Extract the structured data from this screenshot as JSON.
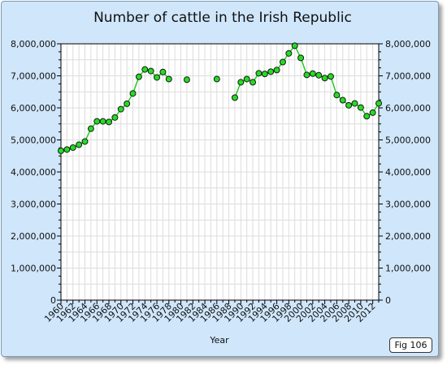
{
  "chart_data": {
    "type": "line",
    "title": "Number of cattle in the Irish Republic",
    "xlabel": "Year",
    "ylabel": "",
    "xlim": [
      1960,
      2013
    ],
    "ylim": [
      0,
      8000000
    ],
    "x_ticks": [
      1960,
      1962,
      1964,
      1966,
      1968,
      1970,
      1972,
      1974,
      1976,
      1978,
      1980,
      1982,
      1984,
      1986,
      1988,
      1990,
      1992,
      1994,
      1996,
      1998,
      2000,
      2002,
      2004,
      2006,
      2008,
      2010,
      2012
    ],
    "y_ticks": [
      0,
      1000000,
      2000000,
      3000000,
      4000000,
      5000000,
      6000000,
      7000000,
      8000000
    ],
    "y_tick_labels": [
      "0",
      "1,000,000",
      "2,000,000",
      "3,000,000",
      "4,000,000",
      "5,000,000",
      "6,000,000",
      "7,000,000",
      "8,000,000"
    ],
    "y_axis_right": true,
    "grid": true,
    "line_color": "#22cc22",
    "marker_color": "#22dd22",
    "series": [
      {
        "x": [
          1960,
          1961,
          1962,
          1963,
          1964,
          1965,
          1966,
          1967,
          1968,
          1969,
          1970,
          1971,
          1972,
          1973,
          1974,
          1975,
          1976,
          1977,
          1978,
          1981,
          1986,
          1989,
          1990,
          1991,
          1992,
          1993,
          1994,
          1995,
          1996,
          1997,
          1998,
          1999,
          2000,
          2001,
          2002,
          2003,
          2004,
          2005,
          2006,
          2007,
          2008,
          2009,
          2010,
          2011,
          2012,
          2013
        ],
        "y": [
          4660000,
          4700000,
          4760000,
          4850000,
          4950000,
          5350000,
          5580000,
          5580000,
          5560000,
          5700000,
          5960000,
          6130000,
          6450000,
          6970000,
          7200000,
          7150000,
          6950000,
          7120000,
          6900000,
          6880000,
          6900000,
          6320000,
          6800000,
          6900000,
          6800000,
          7080000,
          7060000,
          7130000,
          7180000,
          7430000,
          7700000,
          7940000,
          7560000,
          7030000,
          7070000,
          7020000,
          6930000,
          6980000,
          6400000,
          6240000,
          6080000,
          6140000,
          6010000,
          5740000,
          5850000,
          6140000
        ]
      }
    ]
  },
  "badge": {
    "label": "Fig 106"
  }
}
